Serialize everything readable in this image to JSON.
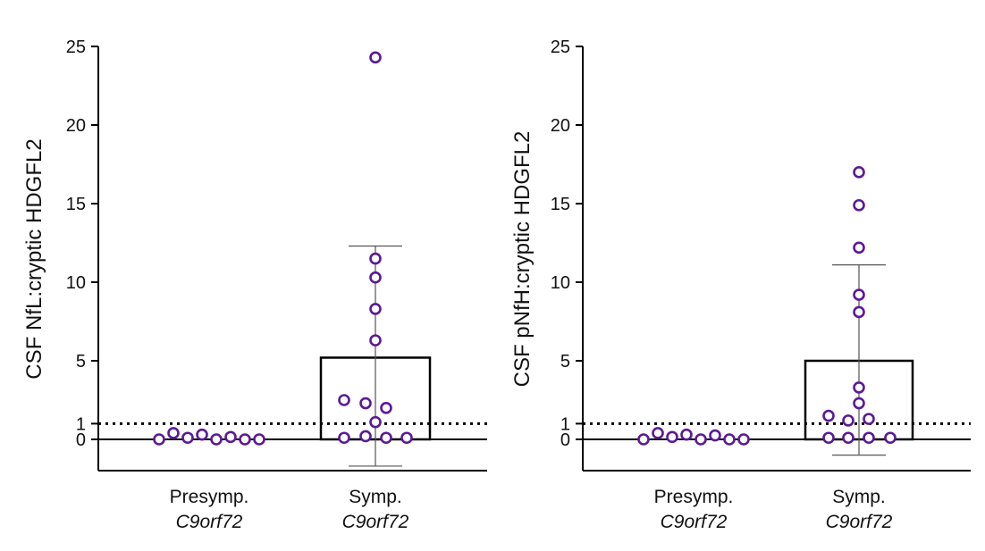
{
  "chart_data": [
    {
      "type": "bar",
      "ylabel": "CSF NfL:cryptic HDGFL2",
      "ylim": [
        -2,
        25
      ],
      "yticks": [
        "0",
        "1",
        "5",
        "10",
        "15",
        "20",
        "25"
      ],
      "ytick_values": [
        0,
        1,
        5,
        10,
        15,
        20,
        25
      ],
      "threshold": 1,
      "categories": [
        {
          "line1": "Presymp.",
          "line2": "C9orf72"
        },
        {
          "line1": "Symp.",
          "line2": "C9orf72"
        }
      ],
      "means": [
        0.05,
        5.2
      ],
      "error_bars": [
        null,
        [
          -1.7,
          12.3
        ]
      ],
      "points": [
        [
          0,
          0.4,
          0.1,
          0.3,
          0,
          0.15,
          0,
          0
        ],
        [
          24.3,
          11.5,
          10.3,
          8.3,
          6.3,
          2.5,
          2.3,
          2.0,
          1.1,
          0.1,
          0.2,
          0.1,
          0.1
        ]
      ],
      "marker_color": "#5b1a96"
    },
    {
      "type": "bar",
      "ylabel": "CSF pNfH:cryptic HDGFL2",
      "ylim": [
        -2,
        25
      ],
      "yticks": [
        "0",
        "1",
        "5",
        "10",
        "15",
        "20",
        "25"
      ],
      "ytick_values": [
        0,
        1,
        5,
        10,
        15,
        20,
        25
      ],
      "threshold": 1,
      "categories": [
        {
          "line1": "Presymp.",
          "line2": "C9orf72"
        },
        {
          "line1": "Symp.",
          "line2": "C9orf72"
        }
      ],
      "means": [
        0.05,
        5.0
      ],
      "error_bars": [
        null,
        [
          -1.0,
          11.1
        ]
      ],
      "points": [
        [
          0,
          0.4,
          0.15,
          0.3,
          0,
          0.25,
          0,
          0
        ],
        [
          17.0,
          14.9,
          12.2,
          9.2,
          8.1,
          3.3,
          2.3,
          1.5,
          1.2,
          1.3,
          0.1,
          0.1,
          0.1,
          0.1
        ]
      ],
      "marker_color": "#5b1a96"
    }
  ]
}
